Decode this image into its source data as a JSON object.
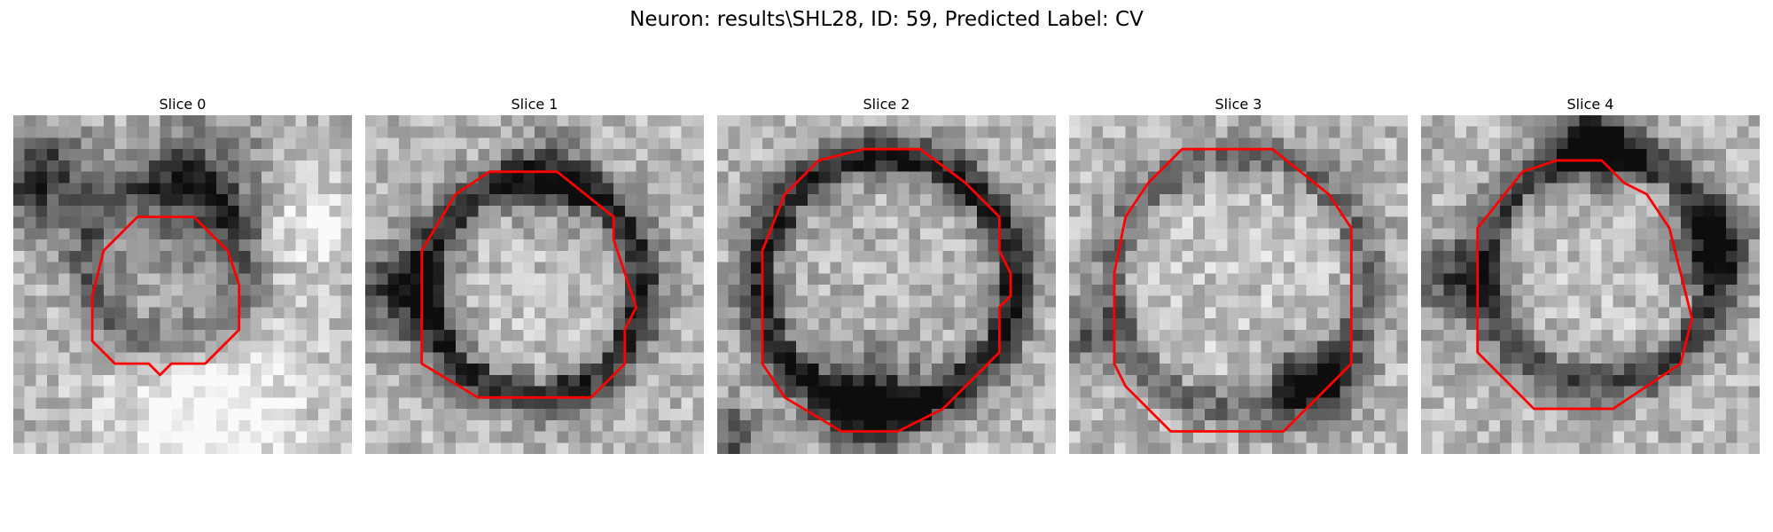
{
  "figure": {
    "suptitle": "Neuron: results\\SHL28, ID: 59, Predicted Label: CV",
    "panels": [
      {
        "title": "Slice 0"
      },
      {
        "title": "Slice 1"
      },
      {
        "title": "Slice 2"
      },
      {
        "title": "Slice 3"
      },
      {
        "title": "Slice 4"
      }
    ],
    "contour_color": "#ff0000",
    "colormap": "grayscale"
  }
}
